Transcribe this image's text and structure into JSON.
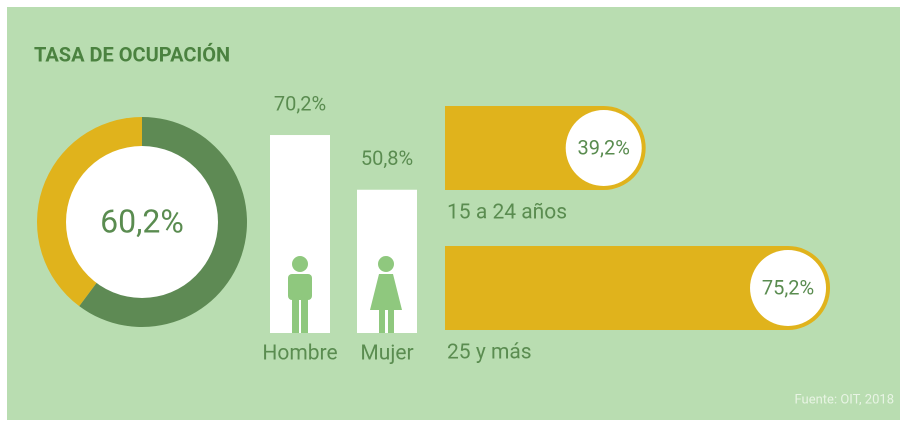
{
  "title": "TASA DE OCUPACIÓN",
  "source": "Fuente: OIT, 2018",
  "chart_data": [
    {
      "type": "donut",
      "values": [
        60.2
      ],
      "value_labels": [
        "60,2%"
      ],
      "color": "#5e8a54",
      "rest_color": "#e0b31c"
    },
    {
      "type": "bar",
      "categories": [
        "Hombre",
        "Mujer"
      ],
      "values": [
        70.2,
        50.8
      ],
      "value_labels": [
        "70,2%",
        "50,8%"
      ],
      "color": "#ffffff"
    },
    {
      "type": "barh",
      "categories": [
        "15 a 24 años",
        "25 y más"
      ],
      "values": [
        39.2,
        75.2
      ],
      "value_labels": [
        "39,2%",
        "75,2%"
      ],
      "color": "#e0b31c"
    }
  ]
}
